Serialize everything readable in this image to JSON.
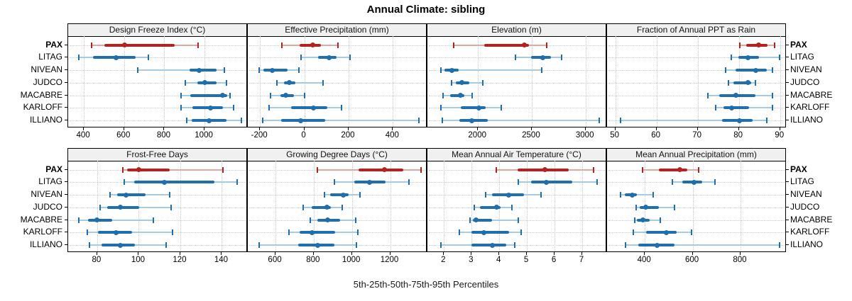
{
  "title": "Annual Climate: sibling",
  "caption": "5th-25th-50th-75th-95th Percentiles",
  "percentile_labels": [
    "5th",
    "25th",
    "50th",
    "75th",
    "95th"
  ],
  "sites": [
    {
      "name": "PAX",
      "highlighted": true
    },
    {
      "name": "LITAG",
      "highlighted": false
    },
    {
      "name": "NIVEAN",
      "highlighted": false
    },
    {
      "name": "JUDCO",
      "highlighted": false
    },
    {
      "name": "MACABRE",
      "highlighted": false
    },
    {
      "name": "KARLOFF",
      "highlighted": false
    },
    {
      "name": "ILLIANO",
      "highlighted": false
    }
  ],
  "colors": {
    "highlight_dark": "#B22222",
    "highlight_light": "#E2A6A6",
    "normal_dark": "#1F6FAF",
    "normal_light": "#A6CBE3",
    "strip_bg": "#F0F0F0",
    "grid": "#C9C9C9",
    "border": "#000000"
  },
  "chart_data": [
    {
      "type": "scatter",
      "mark": "percentile-interval-dotplot",
      "grid": "dotted",
      "legend": "none",
      "title": "Design Freeze Index (°C)",
      "xlim": [
        322,
        1215
      ],
      "ticks": [
        400,
        600,
        800,
        1000
      ],
      "series": [
        {
          "site": "PAX",
          "percentiles": [
            437,
            502,
            602,
            852,
            968
          ]
        },
        {
          "site": "LITAG",
          "percentiles": [
            375,
            446,
            560,
            656,
            720
          ]
        },
        {
          "site": "NIVEAN",
          "percentiles": [
            668,
            926,
            974,
            1060,
            1100
          ]
        },
        {
          "site": "JUDCO",
          "percentiles": [
            905,
            965,
            1000,
            1060,
            1110
          ]
        },
        {
          "site": "MACABRE",
          "percentiles": [
            882,
            930,
            1090,
            1112,
            1127
          ]
        },
        {
          "site": "KARLOFF",
          "percentiles": [
            882,
            938,
            1030,
            1091,
            1146
          ]
        },
        {
          "site": "ILLIANO",
          "percentiles": [
            910,
            935,
            1022,
            1108,
            1182
          ]
        }
      ]
    },
    {
      "type": "scatter",
      "mark": "percentile-interval-dotplot",
      "grid": "dotted",
      "legend": "none",
      "title": "Effective Precipitation (mm)",
      "xlim": [
        -255,
        556
      ],
      "ticks": [
        -200,
        0,
        200,
        400
      ],
      "series": [
        {
          "site": "PAX",
          "percentiles": [
            -100,
            -20,
            37,
            76,
            153
          ]
        },
        {
          "site": "LITAG",
          "percentiles": [
            -13,
            62,
            113,
            147,
            206
          ]
        },
        {
          "site": "NIVEAN",
          "percentiles": [
            -203,
            -184,
            -146,
            -77,
            -23
          ]
        },
        {
          "site": "JUDCO",
          "percentiles": [
            -125,
            -93,
            -66,
            -39,
            86
          ]
        },
        {
          "site": "MACABRE",
          "percentiles": [
            -152,
            -109,
            -82,
            -47,
            3
          ]
        },
        {
          "site": "KARLOFF",
          "percentiles": [
            -160,
            -59,
            41,
            105,
            169
          ]
        },
        {
          "site": "ILLIANO",
          "percentiles": [
            -189,
            -104,
            -16,
            94,
            516
          ]
        }
      ]
    },
    {
      "type": "scatter",
      "mark": "percentile-interval-dotplot",
      "grid": "dotted",
      "legend": "none",
      "title": "Elevation (m)",
      "xlim": [
        1530,
        3200
      ],
      "ticks": [
        2000,
        2500,
        3000
      ],
      "series": [
        {
          "site": "PAX",
          "percentiles": [
            1771,
            2058,
            2433,
            2477,
            2642
          ]
        },
        {
          "site": "LITAG",
          "percentiles": [
            2349,
            2493,
            2603,
            2680,
            2775
          ]
        },
        {
          "site": "NIVEAN",
          "percentiles": [
            1654,
            1687,
            1758,
            1819,
            2592
          ]
        },
        {
          "site": "JUDCO",
          "percentiles": [
            1753,
            1797,
            1852,
            1919,
            2046
          ]
        },
        {
          "site": "MACABRE",
          "percentiles": [
            1676,
            1742,
            1834,
            1874,
            1945
          ]
        },
        {
          "site": "KARLOFF",
          "percentiles": [
            1654,
            1841,
            2011,
            2073,
            2217
          ]
        },
        {
          "site": "ILLIANO",
          "percentiles": [
            1669,
            1830,
            1945,
            2089,
            3126
          ]
        }
      ]
    },
    {
      "type": "scatter",
      "mark": "percentile-interval-dotplot",
      "grid": "dotted",
      "legend": "none",
      "title": "Fraction of Annual PPT as Rain",
      "xlim": [
        48,
        91.6
      ],
      "ticks": [
        50,
        60,
        70,
        80,
        90
      ],
      "series": [
        {
          "site": "PAX",
          "percentiles": [
            80.2,
            81.8,
            84.8,
            87.0,
            88.6
          ]
        },
        {
          "site": "LITAG",
          "percentiles": [
            78.2,
            79.8,
            82.2,
            84.9,
            89.8
          ]
        },
        {
          "site": "NIVEAN",
          "percentiles": [
            76.7,
            79.2,
            84.1,
            86.7,
            88.1
          ]
        },
        {
          "site": "JUDCO",
          "percentiles": [
            77.5,
            78.6,
            82.2,
            82.9,
            84.1
          ]
        },
        {
          "site": "MACABRE",
          "percentiles": [
            72.5,
            75.3,
            79.2,
            84.0,
            88.1
          ]
        },
        {
          "site": "KARLOFF",
          "percentiles": [
            74.3,
            76.3,
            78.3,
            82.4,
            88.1
          ]
        },
        {
          "site": "ILLIANO",
          "percentiles": [
            51.3,
            76.0,
            80.2,
            83.4,
            86.8
          ]
        }
      ]
    },
    {
      "type": "scatter",
      "mark": "percentile-interval-dotplot",
      "grid": "dotted",
      "legend": "none",
      "title": "Frost-Free Days",
      "xlim": [
        66,
        152.5
      ],
      "ticks": [
        80,
        100,
        120,
        140
      ],
      "series": [
        {
          "site": "PAX",
          "percentiles": [
            92.2,
            94.5,
            100,
            114.8,
            140.5
          ]
        },
        {
          "site": "LITAG",
          "percentiles": [
            93.1,
            97.9,
            112.2,
            136.3,
            147.5
          ]
        },
        {
          "site": "NIVEAN",
          "percentiles": [
            86.3,
            89.6,
            94.0,
            103.1,
            114.8
          ]
        },
        {
          "site": "JUDCO",
          "percentiles": [
            81.4,
            84.8,
            91.1,
            100.2,
            115.7
          ]
        },
        {
          "site": "MACABRE",
          "percentiles": [
            71.1,
            75.6,
            80.0,
            87.1,
            107.1
          ]
        },
        {
          "site": "KARLOFF",
          "percentiles": [
            75.4,
            80.2,
            89.2,
            96.8,
            116.3
          ]
        },
        {
          "site": "ILLIANO",
          "percentiles": [
            76.2,
            82.0,
            91.1,
            98.3,
            113.2
          ]
        }
      ]
    },
    {
      "type": "scatter",
      "mark": "percentile-interval-dotplot",
      "grid": "dotted",
      "legend": "none",
      "title": "Growing Degree Days (°C)",
      "xlim": [
        455,
        1395
      ],
      "ticks": [
        600,
        800,
        1000,
        1200
      ],
      "series": [
        {
          "site": "PAX",
          "percentiles": [
            820,
            1035,
            1170,
            1270,
            1360
          ]
        },
        {
          "site": "LITAG",
          "percentiles": [
            907,
            1012,
            1092,
            1175,
            1300
          ]
        },
        {
          "site": "NIVEAN",
          "percentiles": [
            857,
            885,
            954,
            981,
            1043
          ]
        },
        {
          "site": "JUDCO",
          "percentiles": [
            744,
            789,
            870,
            891,
            950
          ]
        },
        {
          "site": "MACABRE",
          "percentiles": [
            783,
            818,
            874,
            938,
            1018
          ]
        },
        {
          "site": "KARLOFF",
          "percentiles": [
            672,
            728,
            793,
            913,
            1030
          ]
        },
        {
          "site": "ILLIANO",
          "percentiles": [
            514,
            719,
            820,
            907,
            1022
          ]
        }
      ]
    },
    {
      "type": "scatter",
      "mark": "percentile-interval-dotplot",
      "grid": "dotted",
      "legend": "none",
      "title": "Mean Annual Air Temperature (°C)",
      "xlim": [
        1.4,
        7.9
      ],
      "ticks": [
        2,
        3,
        4,
        5,
        6,
        7
      ],
      "series": [
        {
          "site": "PAX",
          "percentiles": [
            3.9,
            4.65,
            5.65,
            6.5,
            7.4
          ]
        },
        {
          "site": "LITAG",
          "percentiles": [
            4.7,
            5.15,
            5.7,
            6.65,
            7.55
          ]
        },
        {
          "site": "NIVEAN",
          "percentiles": [
            3.5,
            3.75,
            4.35,
            4.9,
            5.5
          ]
        },
        {
          "site": "JUDCO",
          "percentiles": [
            3.1,
            3.3,
            3.9,
            4.05,
            4.45
          ]
        },
        {
          "site": "MACABRE",
          "percentiles": [
            2.95,
            3.05,
            3.15,
            3.75,
            4.7
          ]
        },
        {
          "site": "KARLOFF",
          "percentiles": [
            2.55,
            3.0,
            3.45,
            4.35,
            4.8
          ]
        },
        {
          "site": "ILLIANO",
          "percentiles": [
            1.9,
            3.0,
            3.75,
            4.25,
            4.55
          ]
        }
      ]
    },
    {
      "type": "scatter",
      "mark": "percentile-interval-dotplot",
      "grid": "dotted",
      "legend": "none",
      "title": "Mean Annual Precipitation (mm)",
      "xlim": [
        242,
        993
      ],
      "ticks": [
        400,
        600,
        800
      ],
      "series": [
        {
          "site": "PAX",
          "percentiles": [
            390,
            459,
            545,
            576,
            626
          ]
        },
        {
          "site": "LITAG",
          "percentiles": [
            515,
            556,
            606,
            641,
            693
          ]
        },
        {
          "site": "NIVEAN",
          "percentiles": [
            299,
            317,
            347,
            368,
            435
          ]
        },
        {
          "site": "JUDCO",
          "percentiles": [
            363,
            378,
            403,
            458,
            525
          ]
        },
        {
          "site": "MACABRE",
          "percentiles": [
            357,
            368,
            391,
            420,
            465
          ]
        },
        {
          "site": "KARLOFF",
          "percentiles": [
            351,
            406,
            490,
            532,
            594
          ]
        },
        {
          "site": "ILLIANO",
          "percentiles": [
            319,
            373,
            450,
            525,
            962
          ]
        }
      ]
    }
  ]
}
